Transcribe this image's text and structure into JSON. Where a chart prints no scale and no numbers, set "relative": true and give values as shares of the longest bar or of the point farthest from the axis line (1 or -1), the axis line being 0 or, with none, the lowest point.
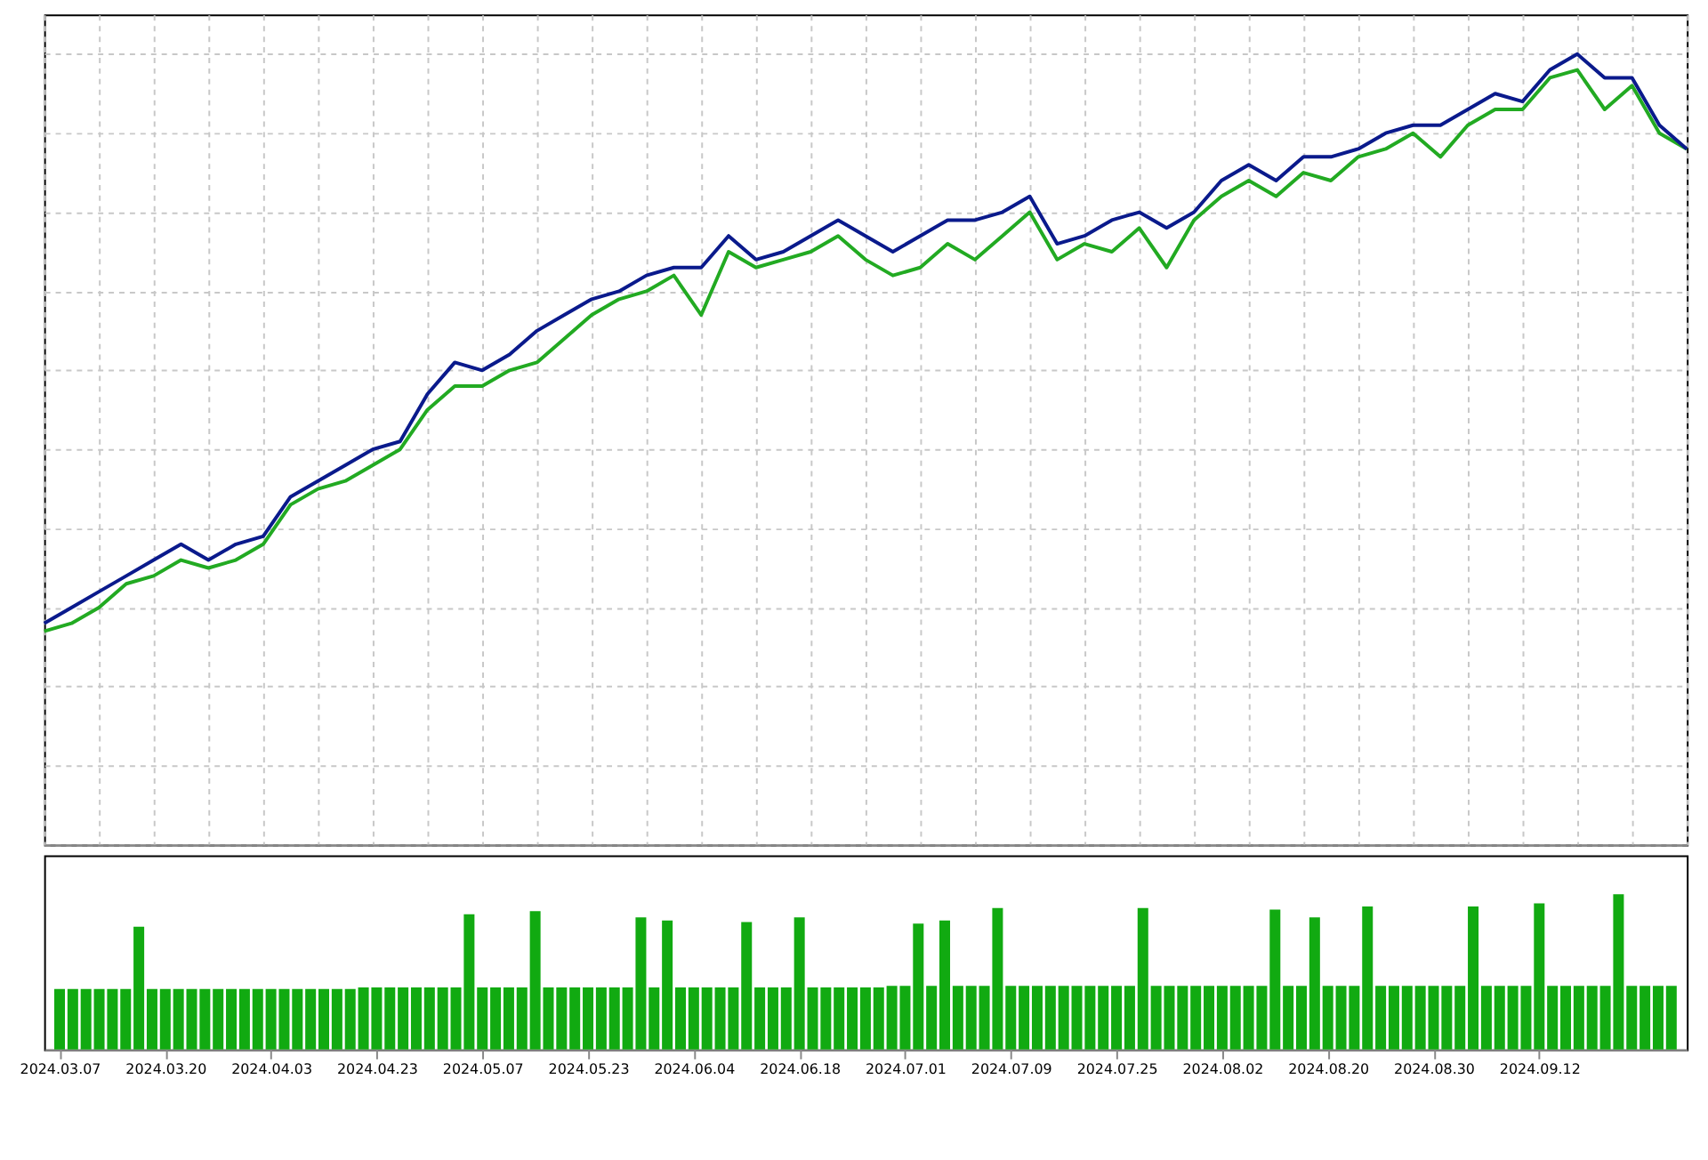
{
  "chart_data": [
    {
      "type": "line",
      "relative": true,
      "grid": true,
      "tick_labels": false,
      "line_style": "solid",
      "categories": [
        null,
        null,
        null,
        null,
        null,
        null,
        null,
        null,
        null,
        null,
        null,
        null,
        null,
        null,
        null,
        null,
        null,
        null,
        null,
        null,
        null,
        null,
        null,
        null,
        null,
        null,
        null,
        null,
        null,
        null,
        null,
        null,
        null,
        null,
        null,
        null,
        null,
        null,
        null,
        null,
        null,
        null,
        null,
        null,
        null,
        null,
        null,
        null,
        null,
        null,
        null,
        null,
        null,
        null,
        null,
        null,
        null,
        null,
        null,
        null,
        null
      ],
      "series": [
        {
          "color": "#22aa22",
          "values": [
            0.27,
            0.28,
            0.3,
            0.33,
            0.34,
            0.36,
            0.35,
            0.36,
            0.38,
            0.43,
            0.45,
            0.46,
            0.48,
            0.5,
            0.55,
            0.58,
            0.58,
            0.6,
            0.61,
            0.64,
            0.67,
            0.69,
            0.7,
            0.72,
            0.67,
            0.75,
            0.73,
            0.74,
            0.75,
            0.77,
            0.74,
            0.72,
            0.73,
            0.76,
            0.74,
            0.77,
            0.8,
            0.74,
            0.76,
            0.75,
            0.78,
            0.73,
            0.79,
            0.82,
            0.84,
            0.82,
            0.85,
            0.84,
            0.87,
            0.88,
            0.9,
            0.87,
            0.91,
            0.93,
            0.93,
            0.97,
            0.98,
            0.93,
            0.96,
            0.9,
            0.88
          ]
        },
        {
          "color": "#0a1a8c",
          "values": [
            0.28,
            0.3,
            0.32,
            0.34,
            0.36,
            0.38,
            0.36,
            0.38,
            0.39,
            0.44,
            0.46,
            0.48,
            0.5,
            0.51,
            0.57,
            0.61,
            0.6,
            0.62,
            0.65,
            0.67,
            0.69,
            0.7,
            0.72,
            0.73,
            0.73,
            0.77,
            0.74,
            0.75,
            0.77,
            0.79,
            0.77,
            0.75,
            0.77,
            0.79,
            0.79,
            0.8,
            0.82,
            0.76,
            0.77,
            0.79,
            0.8,
            0.78,
            0.8,
            0.84,
            0.86,
            0.84,
            0.87,
            0.87,
            0.88,
            0.9,
            0.91,
            0.91,
            0.93,
            0.95,
            0.94,
            0.98,
            1,
            0.97,
            0.97,
            0.91,
            0.88
          ]
        }
      ]
    },
    {
      "type": "bar",
      "relative": true,
      "grid": false,
      "tick_labels": "x",
      "color": "#11aa11",
      "categories": [
        "2024.03.07",
        null,
        null,
        null,
        null,
        null,
        null,
        null,
        "2024.03.20",
        null,
        null,
        null,
        null,
        null,
        null,
        null,
        "2024.04.03",
        null,
        null,
        null,
        null,
        null,
        null,
        null,
        "2024.04.23",
        null,
        null,
        null,
        null,
        null,
        null,
        null,
        "2024.05.07",
        null,
        null,
        null,
        null,
        null,
        null,
        null,
        "2024.05.23",
        null,
        null,
        null,
        null,
        null,
        null,
        null,
        "2024.06.04",
        null,
        null,
        null,
        null,
        null,
        null,
        null,
        "2024.06.18",
        null,
        null,
        null,
        null,
        null,
        null,
        null,
        "2024.07.01",
        null,
        null,
        null,
        null,
        null,
        null,
        null,
        "2024.07.09",
        null,
        null,
        null,
        null,
        null,
        null,
        null,
        "2024.07.25",
        null,
        null,
        null,
        null,
        null,
        null,
        null,
        "2024.08.02",
        null,
        null,
        null,
        null,
        null,
        null,
        null,
        "2024.08.20",
        null,
        null,
        null,
        null,
        null,
        null,
        null,
        "2024.08.30",
        null,
        null,
        null,
        null,
        null,
        null,
        null,
        "2024.09.12",
        null,
        null,
        null,
        null,
        null,
        null,
        null,
        null,
        null,
        null
      ],
      "values": [
        0.39,
        0.39,
        0.39,
        0.39,
        0.39,
        0.39,
        0.79,
        0.39,
        0.39,
        0.39,
        0.39,
        0.39,
        0.39,
        0.39,
        0.39,
        0.39,
        0.39,
        0.39,
        0.39,
        0.39,
        0.39,
        0.39,
        0.39,
        0.4,
        0.4,
        0.4,
        0.4,
        0.4,
        0.4,
        0.4,
        0.4,
        0.87,
        0.4,
        0.4,
        0.4,
        0.4,
        0.89,
        0.4,
        0.4,
        0.4,
        0.4,
        0.4,
        0.4,
        0.4,
        0.85,
        0.4,
        0.83,
        0.4,
        0.4,
        0.4,
        0.4,
        0.4,
        0.82,
        0.4,
        0.4,
        0.4,
        0.85,
        0.4,
        0.4,
        0.4,
        0.4,
        0.4,
        0.4,
        0.41,
        0.41,
        0.81,
        0.41,
        0.83,
        0.41,
        0.41,
        0.41,
        0.91,
        0.41,
        0.41,
        0.41,
        0.41,
        0.41,
        0.41,
        0.41,
        0.41,
        0.41,
        0.41,
        0.91,
        0.41,
        0.41,
        0.41,
        0.41,
        0.41,
        0.41,
        0.41,
        0.41,
        0.41,
        0.9,
        0.41,
        0.41,
        0.85,
        0.41,
        0.41,
        0.41,
        0.92,
        0.41,
        0.41,
        0.41,
        0.41,
        0.41,
        0.41,
        0.41,
        0.92,
        0.41,
        0.41,
        0.41,
        0.41,
        0.94,
        0.41,
        0.41,
        0.41,
        0.41,
        0.41,
        1,
        0.41,
        0.41,
        0.41,
        0.41
      ]
    }
  ]
}
